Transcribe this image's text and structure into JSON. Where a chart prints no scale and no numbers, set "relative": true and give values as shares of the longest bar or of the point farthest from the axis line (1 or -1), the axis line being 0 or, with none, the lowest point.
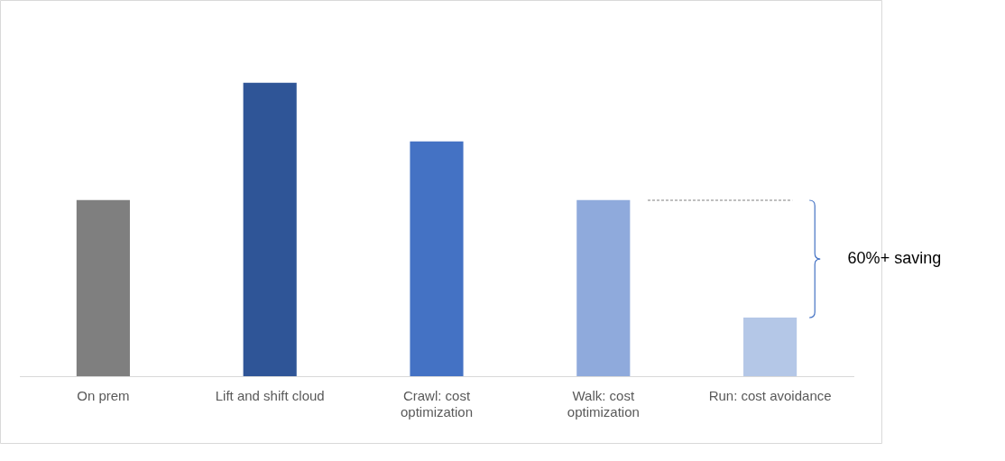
{
  "chart_data": {
    "type": "bar",
    "relative": true,
    "categories": [
      "On prem",
      "Lift and shift cloud",
      "Crawl: cost optimization",
      "Walk: cost optimization",
      "Run: cost avoidance"
    ],
    "values": [
      0.6,
      1,
      0.8,
      0.6,
      0.2
    ],
    "colors": [
      "#7f7f7f",
      "#2f5597",
      "#4472c4",
      "#8faadc",
      "#b4c7e7"
    ],
    "annotations": [
      "60%+ saving"
    ],
    "grid": false,
    "legend": false
  }
}
